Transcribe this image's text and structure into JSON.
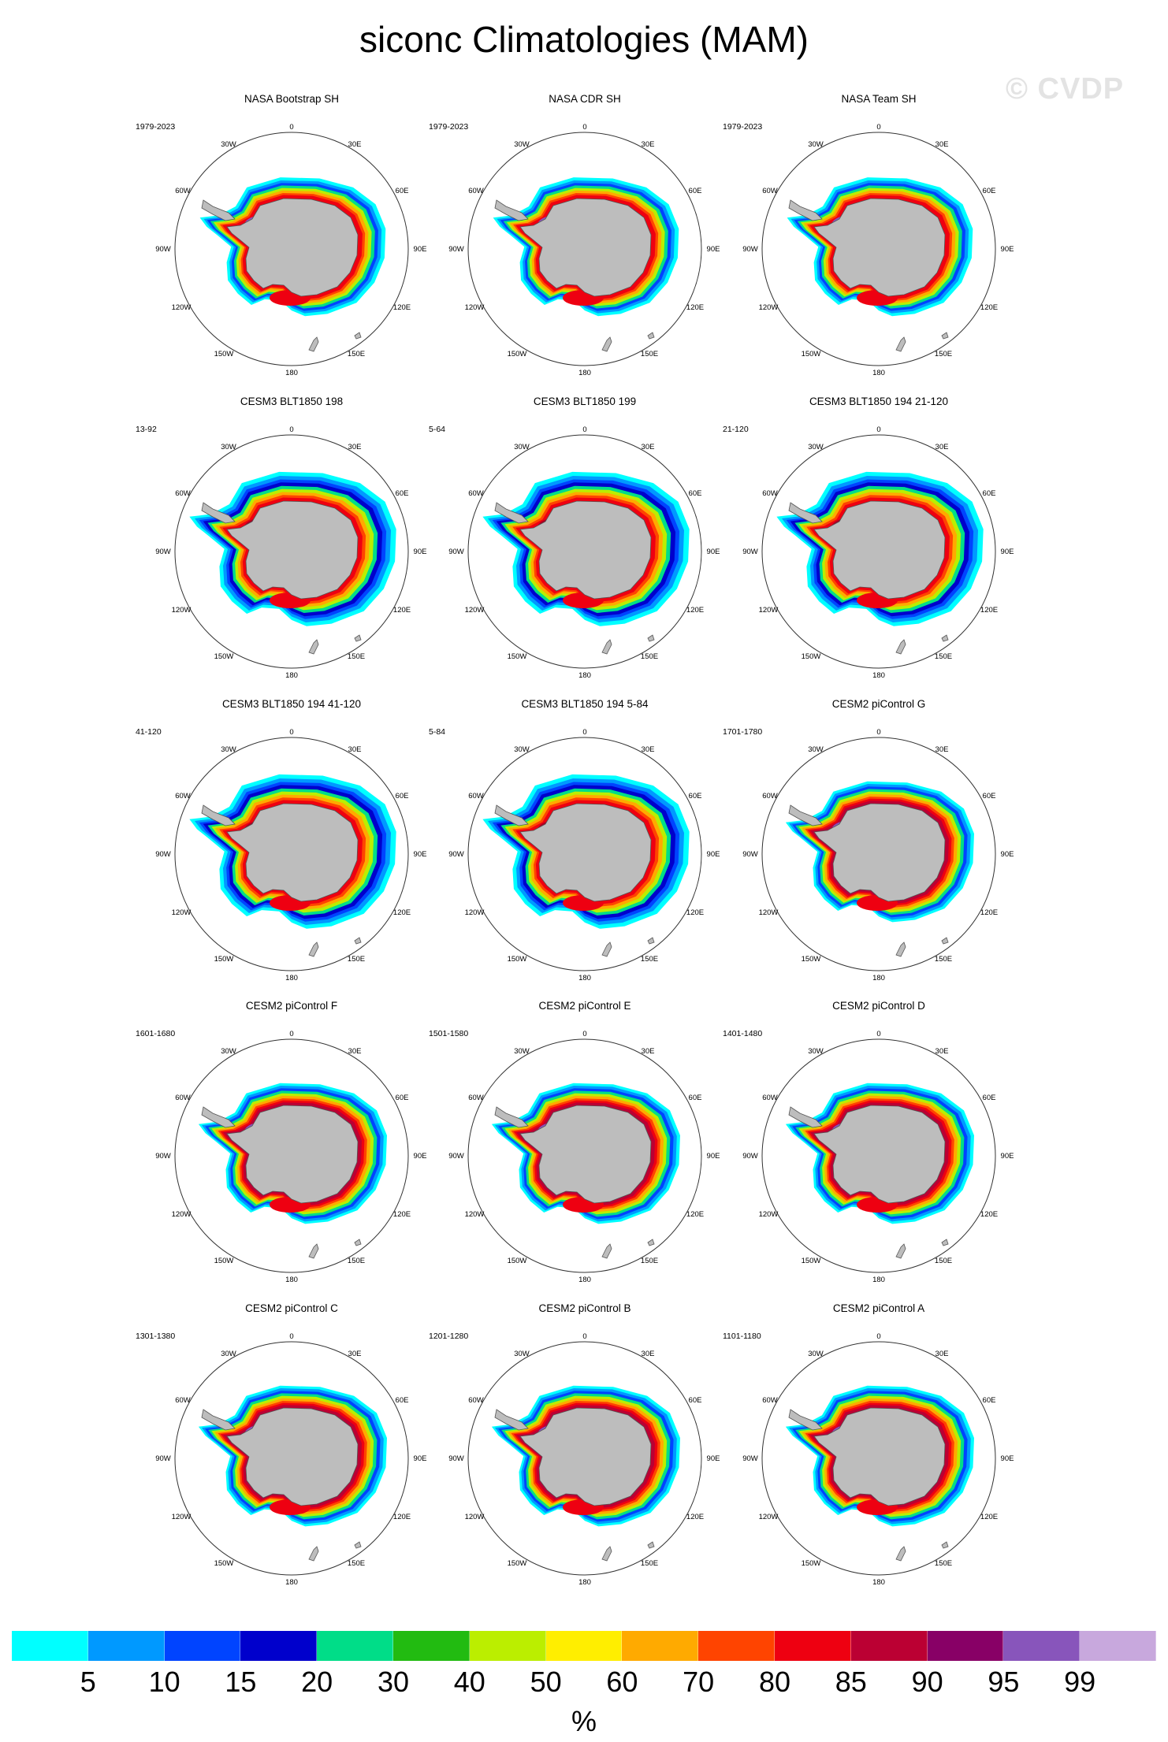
{
  "title": "siconc Climatologies (MAM)",
  "watermark": "© CVDP",
  "unit": "%",
  "legend": {
    "colors": [
      "#00ffff",
      "#0099ff",
      "#0044ff",
      "#0000cc",
      "#00dd88",
      "#22bb11",
      "#bbee00",
      "#ffee00",
      "#ffaa00",
      "#ff4400",
      "#ee0011",
      "#bb0033",
      "#880066",
      "#8855bb",
      "#c8a8dd"
    ],
    "ticks": [
      "5",
      "10",
      "15",
      "20",
      "30",
      "40",
      "50",
      "60",
      "70",
      "80",
      "85",
      "90",
      "95",
      "99"
    ]
  },
  "map_labels": {
    "lon_0": "0",
    "lon_30e": "30E",
    "lon_60e": "60E",
    "lon_90e": "90E",
    "lon_120e": "120E",
    "lon_150e": "150E",
    "lon_180": "180",
    "lon_150w": "150W",
    "lon_120w": "120W",
    "lon_90w": "90W",
    "lon_60w": "60W",
    "lon_30w": "30W"
  },
  "panels": [
    {
      "title": "NASA Bootstrap SH",
      "years": "1979-2023",
      "ice_extent": "medium",
      "style": "obs"
    },
    {
      "title": "NASA CDR SH",
      "years": "1979-2023",
      "ice_extent": "medium",
      "style": "obs"
    },
    {
      "title": "NASA Team SH",
      "years": "1979-2023",
      "ice_extent": "medium",
      "style": "obs"
    },
    {
      "title": "CESM3 BLT1850 198",
      "years": "13-92",
      "ice_extent": "large",
      "style": "cesm3"
    },
    {
      "title": "CESM3 BLT1850 199",
      "years": "5-64",
      "ice_extent": "large",
      "style": "cesm3"
    },
    {
      "title": "CESM3 BLT1850 194 21-120",
      "years": "21-120",
      "ice_extent": "large",
      "style": "cesm3"
    },
    {
      "title": "CESM3 BLT1850 194 41-120",
      "years": "41-120",
      "ice_extent": "large",
      "style": "cesm3"
    },
    {
      "title": "CESM3 BLT1850 194 5-84",
      "years": "5-84",
      "ice_extent": "large",
      "style": "cesm3"
    },
    {
      "title": "CESM2 piControl G",
      "years": "1701-1780",
      "ice_extent": "medium",
      "style": "cesm2"
    },
    {
      "title": "CESM2 piControl F",
      "years": "1601-1680",
      "ice_extent": "medium",
      "style": "cesm2"
    },
    {
      "title": "CESM2 piControl E",
      "years": "1501-1580",
      "ice_extent": "medium",
      "style": "cesm2"
    },
    {
      "title": "CESM2 piControl D",
      "years": "1401-1480",
      "ice_extent": "medium",
      "style": "cesm2"
    },
    {
      "title": "CESM2 piControl C",
      "years": "1301-1380",
      "ice_extent": "medium",
      "style": "cesm2"
    },
    {
      "title": "CESM2 piControl B",
      "years": "1201-1280",
      "ice_extent": "medium",
      "style": "cesm2"
    },
    {
      "title": "CESM2 piControl A",
      "years": "1101-1180",
      "ice_extent": "medium",
      "style": "cesm2"
    }
  ]
}
